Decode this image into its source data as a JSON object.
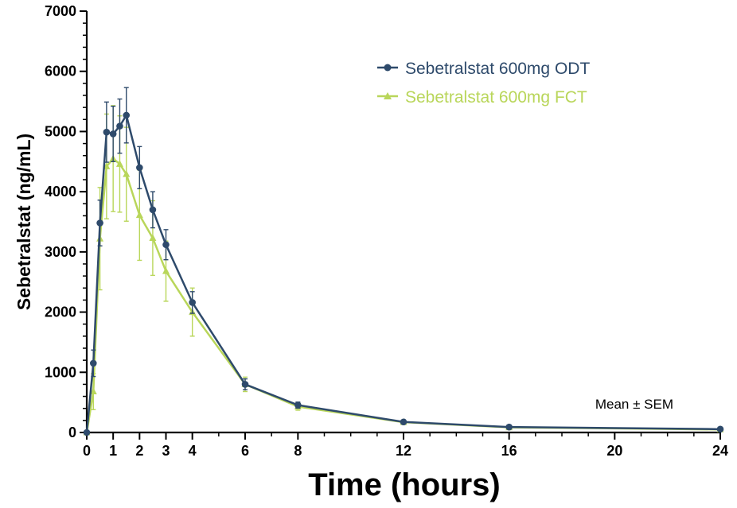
{
  "chart_data": {
    "type": "line",
    "xlabel": "Time (hours)",
    "ylabel": "Sebetralstat (ng/mL)",
    "xlim": [
      0,
      24
    ],
    "ylim": [
      0,
      7000
    ],
    "x_ticks": [
      0,
      1,
      2,
      3,
      4,
      6,
      8,
      12,
      16,
      20,
      24
    ],
    "y_ticks": [
      0,
      1000,
      2000,
      3000,
      4000,
      5000,
      6000,
      7000
    ],
    "legend_position": "top-right",
    "annotation": "Mean ± SEM",
    "grid": false,
    "series": [
      {
        "name": "Sebetralstat 600mg ODT",
        "color": "#2e4a6b",
        "marker": "circle",
        "x": [
          0,
          0.25,
          0.5,
          0.75,
          1,
          1.25,
          1.5,
          2,
          2.5,
          3,
          4,
          6,
          8,
          12,
          16,
          24
        ],
        "y": [
          0,
          1150,
          3480,
          4990,
          4960,
          5090,
          5270,
          4400,
          3700,
          3120,
          2160,
          800,
          455,
          175,
          90,
          55
        ],
        "err": [
          0,
          220,
          380,
          500,
          460,
          450,
          460,
          350,
          300,
          250,
          180,
          90,
          50,
          25,
          15,
          10
        ]
      },
      {
        "name": "Sebetralstat 600mg FCT",
        "color": "#b9d65a",
        "marker": "triangle",
        "x": [
          0,
          0.25,
          0.5,
          0.75,
          1,
          1.25,
          1.5,
          2,
          2.5,
          3,
          4,
          6,
          8,
          12,
          16,
          24
        ],
        "y": [
          0,
          680,
          3220,
          4420,
          4550,
          4460,
          4290,
          3610,
          3230,
          2680,
          2000,
          800,
          430,
          170,
          85,
          50
        ],
        "err": [
          0,
          300,
          850,
          870,
          880,
          800,
          780,
          750,
          620,
          500,
          400,
          120,
          60,
          30,
          15,
          10
        ]
      }
    ]
  }
}
